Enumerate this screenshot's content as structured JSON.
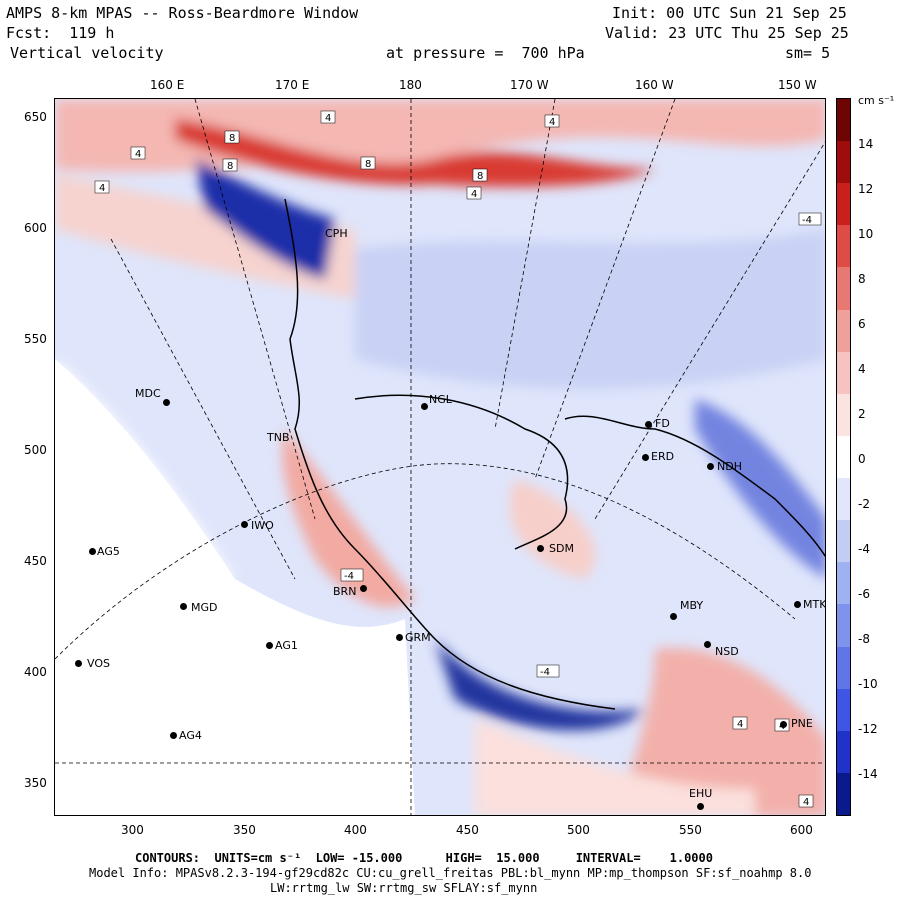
{
  "header": {
    "title": "AMPS 8-km MPAS -- Ross-Beardmore Window",
    "fcst": "Fcst:  119 h",
    "field": "Vertical velocity",
    "init": "Init: 00 UTC Sun 21 Sep 25",
    "valid": "Valid: 23 UTC Thu 25 Sep 25",
    "pressure": "at pressure =  700 hPa",
    "smooth": "sm= 5"
  },
  "top_axis": [
    "160 E",
    "170 E",
    "180",
    "170 W",
    "160 W",
    "150 W"
  ],
  "left_axis": [
    "650",
    "600",
    "550",
    "500",
    "450",
    "400",
    "350"
  ],
  "bottom_axis": [
    "300",
    "350",
    "400",
    "450",
    "500",
    "550",
    "600"
  ],
  "colorbar": {
    "units": "cm s⁻¹",
    "labels": [
      "14",
      "12",
      "10",
      "8",
      "6",
      "4",
      "2",
      "0",
      "-2",
      "-4",
      "-6",
      "-8",
      "-10",
      "-12",
      "-14"
    ],
    "colors": [
      "#0a1a8c",
      "#1f33c9",
      "#3f55e6",
      "#5f75e8",
      "#7f93ec",
      "#a0b1f1",
      "#c2ccf5",
      "#e1e6fa",
      "#ffffff",
      "#fbe3e1",
      "#f6c3c0",
      "#f0a09b",
      "#e87872",
      "#df4c45",
      "#c9201c",
      "#9e0d0b",
      "#6e0505"
    ]
  },
  "stations": [
    {
      "id": "MDC"
    },
    {
      "id": "NGL"
    },
    {
      "id": "TNB"
    },
    {
      "id": "IWO"
    },
    {
      "id": "AG5"
    },
    {
      "id": "MGD"
    },
    {
      "id": "AG1"
    },
    {
      "id": "VOS"
    },
    {
      "id": "AG4"
    },
    {
      "id": "SDM"
    },
    {
      "id": "FD"
    },
    {
      "id": "ERD"
    },
    {
      "id": "NDH"
    },
    {
      "id": "MBY"
    },
    {
      "id": "NSD"
    },
    {
      "id": "MTK"
    },
    {
      "id": "PNE"
    },
    {
      "id": "EHU"
    },
    {
      "id": "CPH"
    },
    {
      "id": "BRN"
    },
    {
      "id": "GRM"
    }
  ],
  "contour_labels": [
    "4",
    "8",
    "8",
    "8",
    "4",
    "4",
    "8",
    "4",
    "4",
    "-4",
    "-4",
    "-4",
    "4",
    "4",
    "4"
  ],
  "footer": {
    "contours": "CONTOURS:  UNITS=cm s⁻¹  LOW= -15.000      HIGH=  15.000     INTERVAL=    1.0000",
    "model": "Model Info: MPASv8.2.3-194-gf29cd82c CU:cu_grell_freitas PBL:bl_mynn MP:mp_thompson SF:sf_noahmp 8.0",
    "physics": "LW:rrtmg_lw SW:rrtmg_sw SFLAY:sf_mynn"
  }
}
